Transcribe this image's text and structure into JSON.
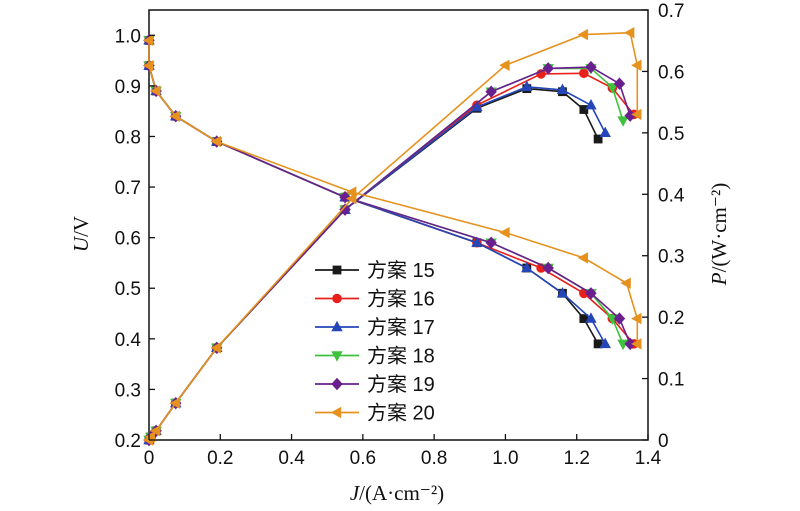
{
  "chart_data": {
    "type": "line",
    "xlabel": "J/(A·cm⁻²)",
    "ylabel_left": "U/V",
    "ylabel_right": "P/(W·cm⁻²)",
    "xlim": [
      0,
      1.4
    ],
    "ylim_left": [
      0.2,
      1.05
    ],
    "ylim_right": [
      0,
      0.7
    ],
    "xticks": [
      "0",
      "0.2",
      "0.4",
      "0.6",
      "0.8",
      "1.0",
      "1.2",
      "1.4"
    ],
    "yticks_left": [
      "0.2",
      "0.3",
      "0.4",
      "0.5",
      "0.6",
      "0.7",
      "0.8",
      "0.9",
      "1.0"
    ],
    "yticks_right": [
      "0",
      "0.1",
      "0.2",
      "0.3",
      "0.4",
      "0.5",
      "0.6",
      "0.7"
    ],
    "grid": false,
    "legend_position": "center-left",
    "series": [
      {
        "name": "方案 15",
        "color": "#1a1a1a",
        "marker": "square",
        "voltage": [
          [
            0,
            0.99
          ],
          [
            0,
            0.94
          ],
          [
            0.02,
            0.89
          ],
          [
            0.075,
            0.84
          ],
          [
            0.19,
            0.79
          ],
          [
            0.55,
            0.68
          ],
          [
            0.92,
            0.59
          ],
          [
            1.06,
            0.54
          ],
          [
            1.16,
            0.49
          ],
          [
            1.22,
            0.44
          ],
          [
            1.26,
            0.39
          ]
        ],
        "power": [
          [
            0,
            0
          ],
          [
            0.005,
            0.005
          ],
          [
            0.02,
            0.015
          ],
          [
            0.075,
            0.06
          ],
          [
            0.19,
            0.15
          ],
          [
            0.55,
            0.375
          ],
          [
            0.92,
            0.54
          ],
          [
            1.06,
            0.572
          ],
          [
            1.16,
            0.567
          ],
          [
            1.22,
            0.538
          ],
          [
            1.26,
            0.49
          ]
        ]
      },
      {
        "name": "方案 16",
        "color": "#e8201c",
        "marker": "circle",
        "voltage": [
          [
            0,
            0.99
          ],
          [
            0,
            0.94
          ],
          [
            0.02,
            0.89
          ],
          [
            0.075,
            0.84
          ],
          [
            0.19,
            0.79
          ],
          [
            0.55,
            0.68
          ],
          [
            0.92,
            0.59
          ],
          [
            1.1,
            0.54
          ],
          [
            1.22,
            0.49
          ],
          [
            1.3,
            0.44
          ],
          [
            1.36,
            0.39
          ]
        ],
        "power": [
          [
            0,
            0
          ],
          [
            0.005,
            0.005
          ],
          [
            0.02,
            0.015
          ],
          [
            0.075,
            0.06
          ],
          [
            0.19,
            0.15
          ],
          [
            0.55,
            0.375
          ],
          [
            0.92,
            0.545
          ],
          [
            1.1,
            0.596
          ],
          [
            1.22,
            0.597
          ],
          [
            1.3,
            0.573
          ],
          [
            1.36,
            0.53
          ]
        ]
      },
      {
        "name": "方案 17",
        "color": "#2446b8",
        "marker": "triangle-up",
        "voltage": [
          [
            0,
            0.99
          ],
          [
            0,
            0.94
          ],
          [
            0.02,
            0.89
          ],
          [
            0.075,
            0.84
          ],
          [
            0.19,
            0.79
          ],
          [
            0.55,
            0.68
          ],
          [
            0.92,
            0.59
          ],
          [
            1.06,
            0.54
          ],
          [
            1.16,
            0.49
          ],
          [
            1.24,
            0.44
          ],
          [
            1.28,
            0.39
          ]
        ],
        "power": [
          [
            0,
            0
          ],
          [
            0.005,
            0.005
          ],
          [
            0.02,
            0.015
          ],
          [
            0.075,
            0.06
          ],
          [
            0.19,
            0.15
          ],
          [
            0.55,
            0.375
          ],
          [
            0.92,
            0.542
          ],
          [
            1.06,
            0.575
          ],
          [
            1.16,
            0.57
          ],
          [
            1.24,
            0.545
          ],
          [
            1.28,
            0.5
          ]
        ]
      },
      {
        "name": "方案 18",
        "color": "#3ec23e",
        "marker": "triangle-down",
        "voltage": [
          [
            0,
            0.99
          ],
          [
            0,
            0.94
          ],
          [
            0.02,
            0.89
          ],
          [
            0.075,
            0.84
          ],
          [
            0.19,
            0.79
          ],
          [
            0.55,
            0.68
          ],
          [
            0.96,
            0.59
          ],
          [
            1.12,
            0.54
          ],
          [
            1.24,
            0.49
          ],
          [
            1.3,
            0.44
          ],
          [
            1.33,
            0.39
          ]
        ],
        "power": [
          [
            0,
            0
          ],
          [
            0.005,
            0.005
          ],
          [
            0.02,
            0.015
          ],
          [
            0.075,
            0.06
          ],
          [
            0.19,
            0.15
          ],
          [
            0.55,
            0.375
          ],
          [
            0.96,
            0.567
          ],
          [
            1.12,
            0.605
          ],
          [
            1.24,
            0.605
          ],
          [
            1.3,
            0.574
          ],
          [
            1.33,
            0.52
          ]
        ]
      },
      {
        "name": "方案 19",
        "color": "#6a1f8f",
        "marker": "diamond",
        "voltage": [
          [
            0,
            0.99
          ],
          [
            0,
            0.94
          ],
          [
            0.02,
            0.89
          ],
          [
            0.075,
            0.84
          ],
          [
            0.19,
            0.79
          ],
          [
            0.55,
            0.68
          ],
          [
            0.96,
            0.59
          ],
          [
            1.12,
            0.54
          ],
          [
            1.24,
            0.49
          ],
          [
            1.32,
            0.44
          ],
          [
            1.35,
            0.39
          ]
        ],
        "power": [
          [
            0,
            0
          ],
          [
            0.005,
            0.005
          ],
          [
            0.02,
            0.015
          ],
          [
            0.075,
            0.06
          ],
          [
            0.19,
            0.15
          ],
          [
            0.55,
            0.375
          ],
          [
            0.96,
            0.567
          ],
          [
            1.12,
            0.605
          ],
          [
            1.24,
            0.607
          ],
          [
            1.32,
            0.58
          ],
          [
            1.35,
            0.528
          ]
        ]
      },
      {
        "name": "方案 20",
        "color": "#e6921e",
        "marker": "triangle-left",
        "voltage": [
          [
            0,
            0.99
          ],
          [
            0,
            0.94
          ],
          [
            0.02,
            0.89
          ],
          [
            0.075,
            0.84
          ],
          [
            0.19,
            0.79
          ],
          [
            0.57,
            0.69
          ],
          [
            1.0,
            0.61
          ],
          [
            1.22,
            0.56
          ],
          [
            1.34,
            0.51
          ],
          [
            1.37,
            0.44
          ],
          [
            1.37,
            0.39
          ]
        ],
        "power": [
          [
            0,
            0
          ],
          [
            0.005,
            0.005
          ],
          [
            0.02,
            0.015
          ],
          [
            0.075,
            0.06
          ],
          [
            0.19,
            0.15
          ],
          [
            0.57,
            0.393
          ],
          [
            1.0,
            0.61
          ],
          [
            1.22,
            0.66
          ],
          [
            1.35,
            0.663
          ],
          [
            1.37,
            0.61
          ],
          [
            1.37,
            0.53
          ]
        ]
      }
    ]
  }
}
